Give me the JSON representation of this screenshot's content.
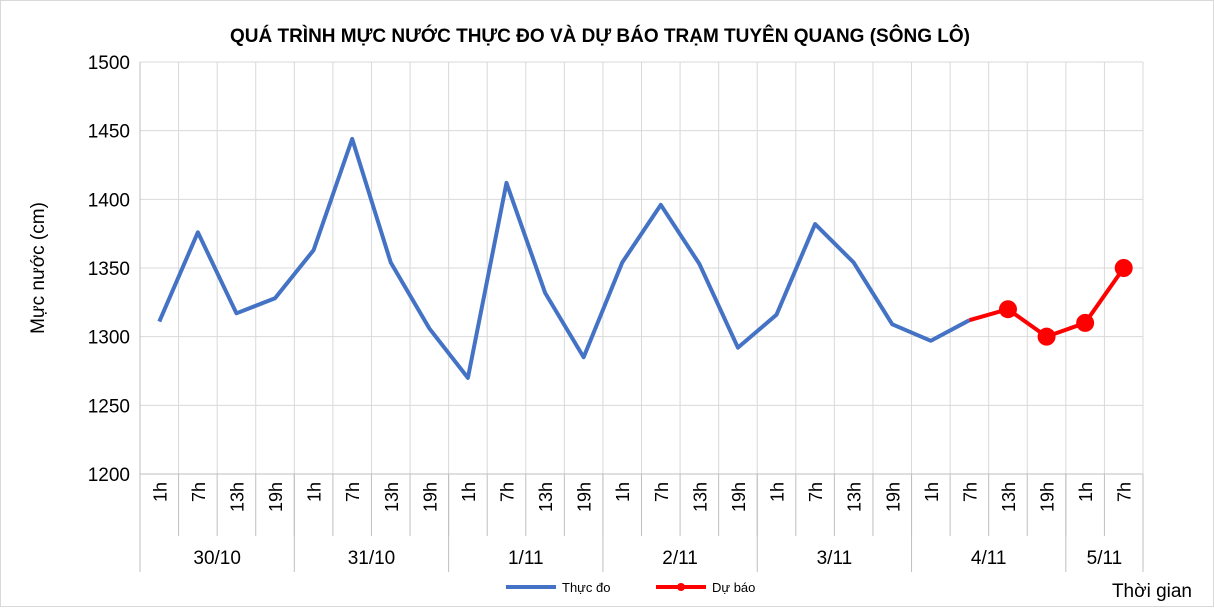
{
  "chart_data": {
    "type": "line",
    "title": "QUÁ TRÌNH MỰC NƯỚC THỰC ĐO VÀ DỰ BÁO TRẠM TUYÊN QUANG (SÔNG LÔ)",
    "y_label": "Mực nước (cm)",
    "x_label": "Thời gian",
    "categories": [
      "1h",
      "7h",
      "13h",
      "19h",
      "1h",
      "7h",
      "13h",
      "19h",
      "1h",
      "7h",
      "13h",
      "19h",
      "1h",
      "7h",
      "13h",
      "19h",
      "1h",
      "7h",
      "13h",
      "19h",
      "1h",
      "7h",
      "13h",
      "19h",
      "1h",
      "7h"
    ],
    "groups": [
      {
        "label": "30/10",
        "count": 4
      },
      {
        "label": "31/10",
        "count": 4
      },
      {
        "label": "1/11",
        "count": 4
      },
      {
        "label": "2/11",
        "count": 4
      },
      {
        "label": "3/11",
        "count": 4
      },
      {
        "label": "4/11",
        "count": 4
      },
      {
        "label": "5/11",
        "count": 2
      }
    ],
    "series": [
      {
        "name": "Thực đo",
        "color": "#4472c4",
        "markers": false,
        "values": [
          1311,
          1376,
          1317,
          1328,
          1363,
          1444,
          1354,
          1306,
          1270,
          1412,
          1332,
          1285,
          1354,
          1396,
          1353,
          1292,
          1316,
          1382,
          1354,
          1309,
          1297,
          1312,
          null,
          null,
          null,
          null
        ]
      },
      {
        "name": "Dự báo",
        "color": "#ff0000",
        "markers": true,
        "values": [
          null,
          null,
          null,
          null,
          null,
          null,
          null,
          null,
          null,
          null,
          null,
          null,
          null,
          null,
          null,
          null,
          null,
          null,
          null,
          null,
          null,
          1312,
          1320,
          1300,
          1310,
          1350
        ]
      }
    ],
    "ylim": [
      1200,
      1500
    ],
    "yticks": [
      1200,
      1250,
      1300,
      1350,
      1400,
      1450,
      1500
    ],
    "grid": true,
    "legend": "bottom"
  }
}
